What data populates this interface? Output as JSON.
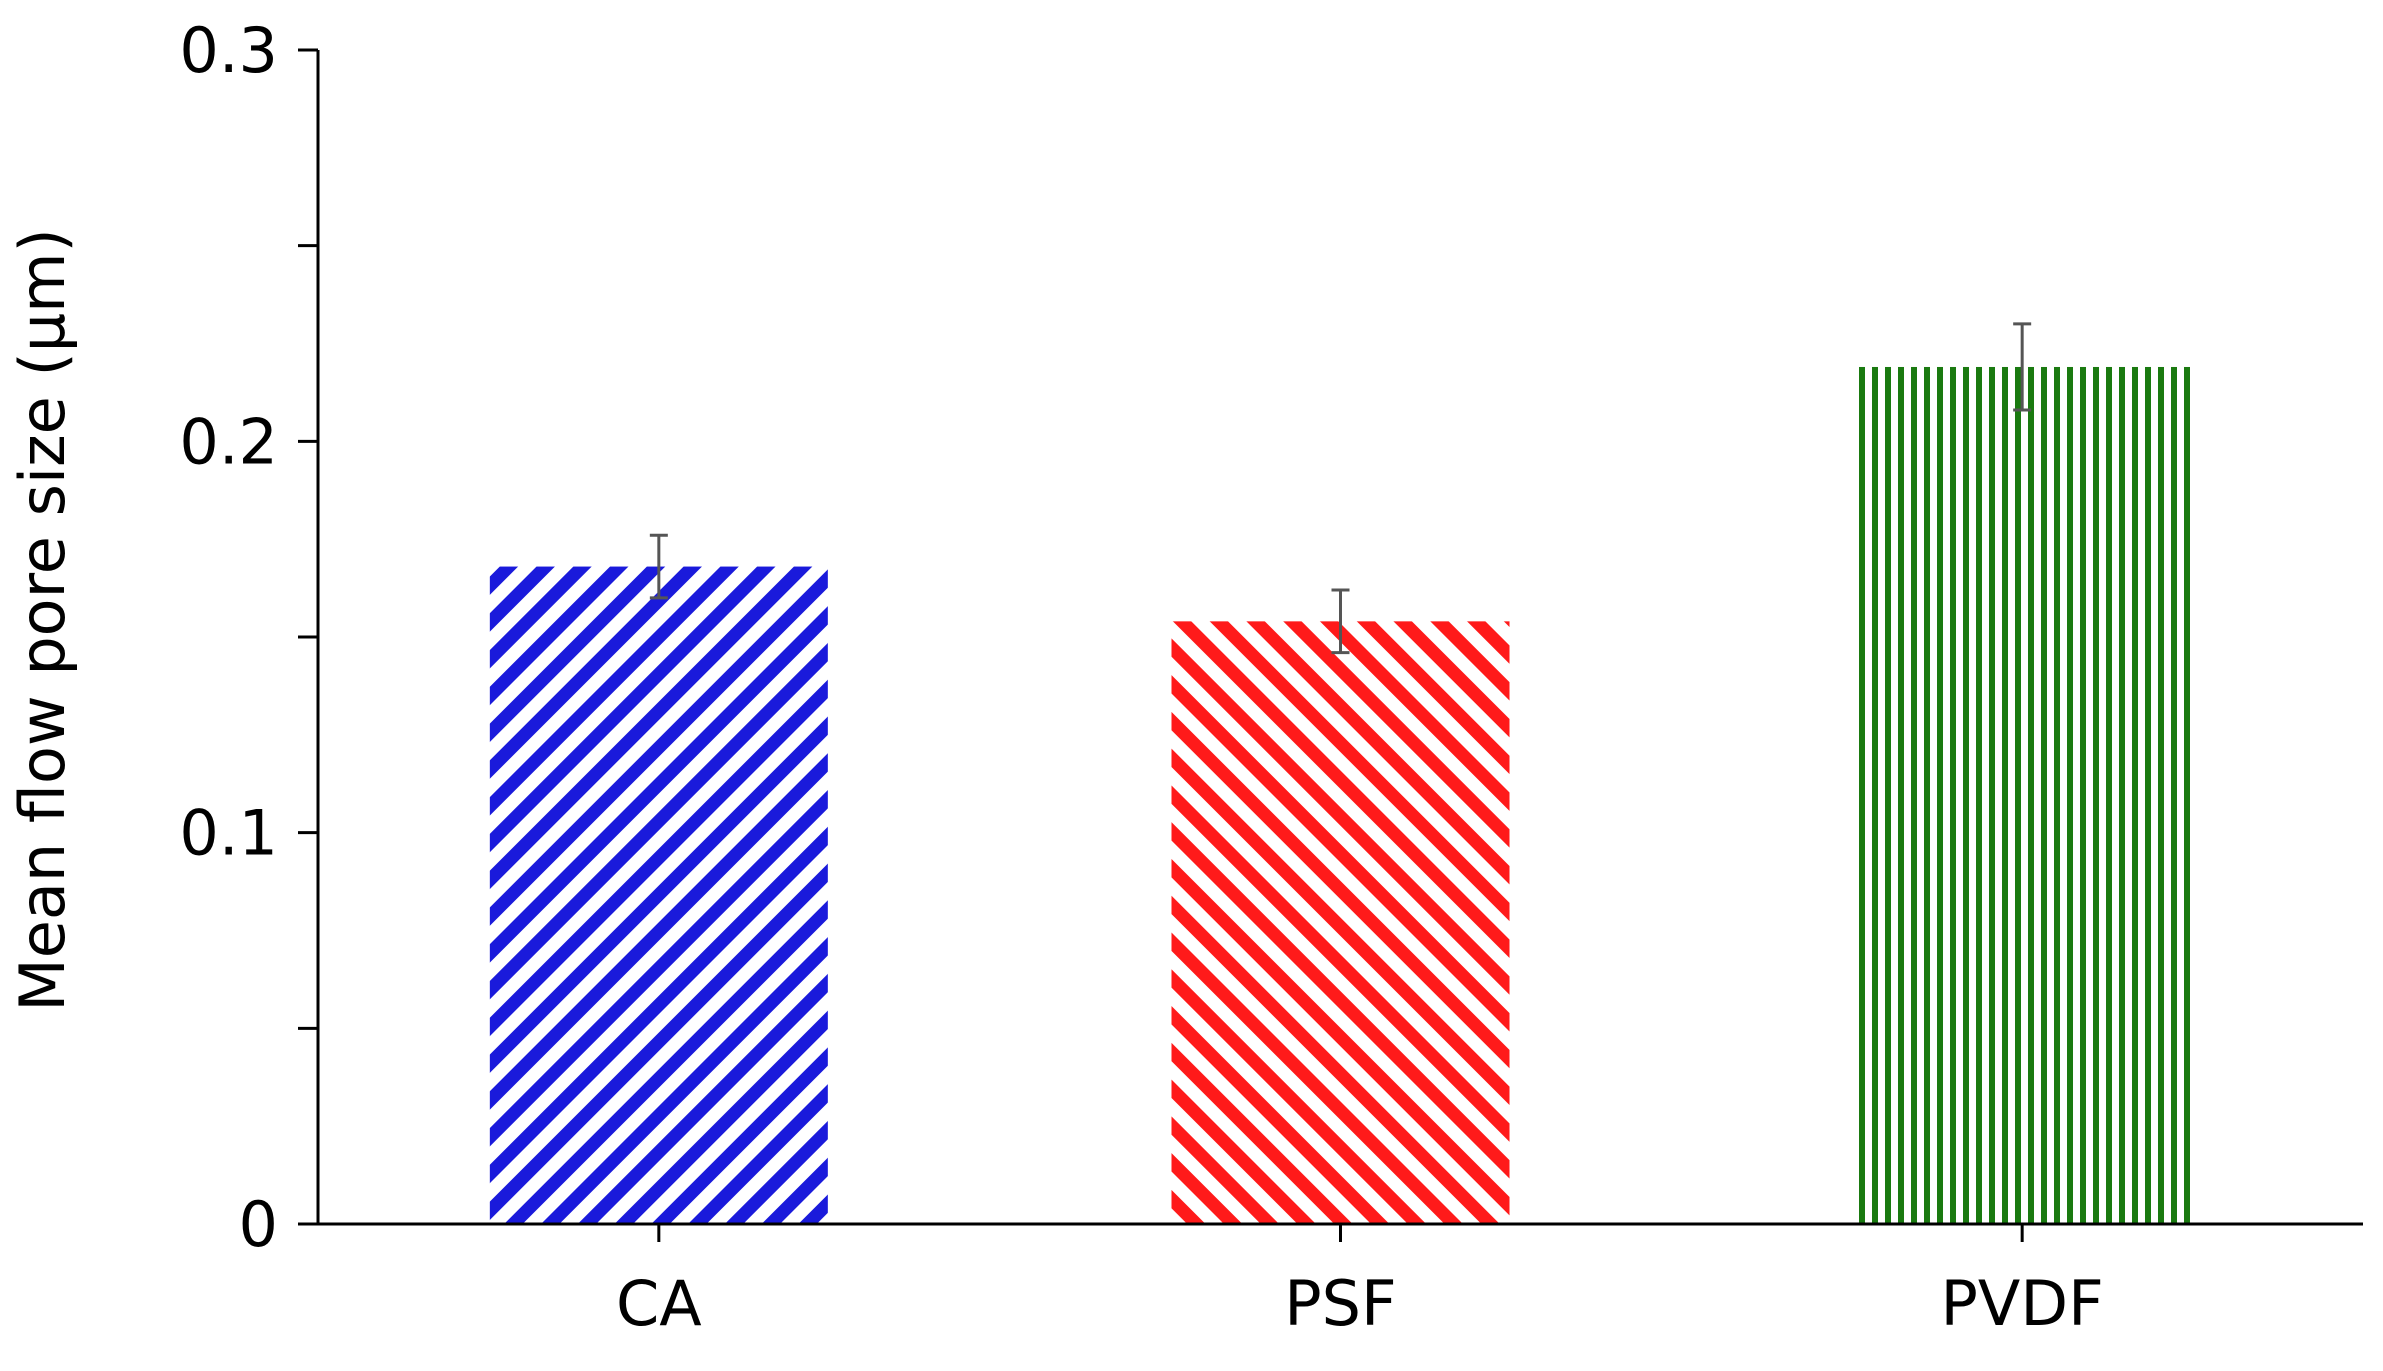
{
  "chart_data": {
    "type": "bar",
    "title": "",
    "xlabel": "",
    "ylabel": "Mean flow pore size (µm)",
    "categories": [
      "CA",
      "PSF",
      "PVDF"
    ],
    "values": [
      0.168,
      0.154,
      0.219
    ],
    "errors": [
      0.008,
      0.008,
      0.011
    ],
    "ylim": [
      0,
      0.3
    ],
    "yticks": [
      "0",
      "0.1",
      "0.2",
      "0.3"
    ],
    "ytick_values": [
      0,
      0.1,
      0.2,
      0.3
    ],
    "minor_yticks": [
      0.05,
      0.15,
      0.25
    ],
    "grid": false,
    "legend": "none",
    "bar_colors": [
      "#1a1adb",
      "#ff1a1a",
      "#1a7a10"
    ],
    "bar_patterns": [
      "diagonal-up",
      "diagonal-down",
      "vertical"
    ],
    "error_bar_color": "#555555"
  }
}
